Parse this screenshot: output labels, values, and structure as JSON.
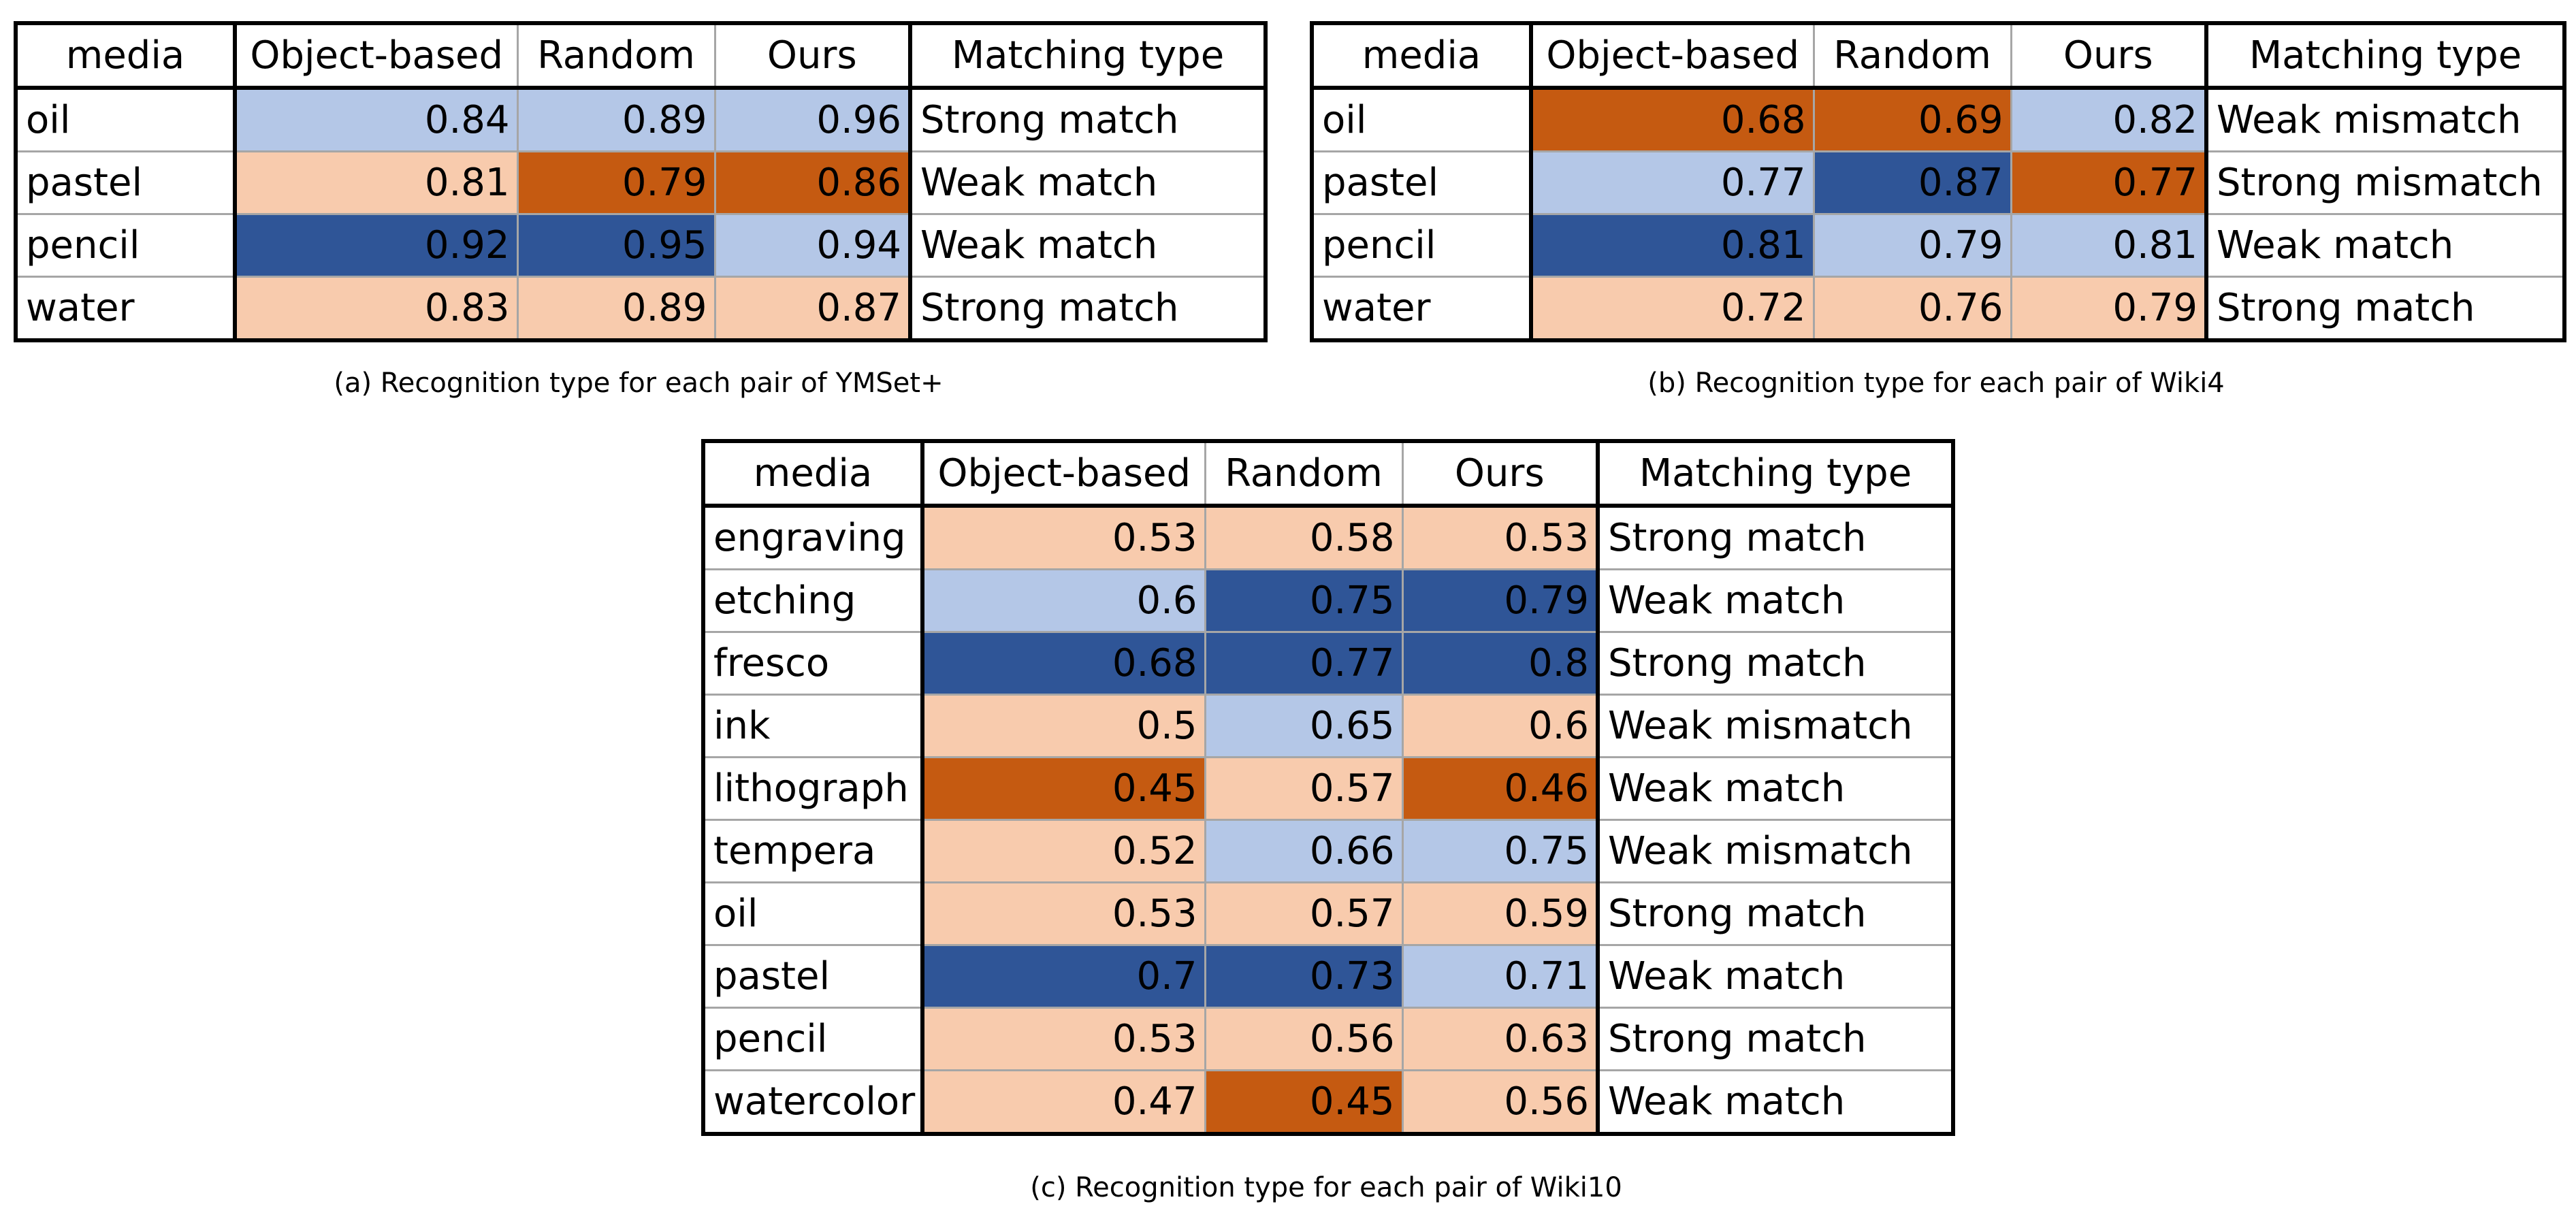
{
  "colors": {
    "light_blue": "#b4c7e7",
    "dark_blue": "#2f5597",
    "light_orange": "#f8cbad",
    "dark_orange": "#c55a11"
  },
  "headers": [
    "media",
    "Object-based",
    "Random",
    "Ours",
    "Matching type"
  ],
  "tables": [
    {
      "caption": "(a) Recognition type for each pair of YMSet+",
      "rows": [
        {
          "media": "oil",
          "values": [
            "0.84",
            "0.89",
            "0.96"
          ],
          "shades": [
            "lb",
            "lb",
            "lb"
          ],
          "matching": "Strong match"
        },
        {
          "media": "pastel",
          "values": [
            "0.81",
            "0.79",
            "0.86"
          ],
          "shades": [
            "lo",
            "do",
            "do"
          ],
          "matching": "Weak match"
        },
        {
          "media": "pencil",
          "values": [
            "0.92",
            "0.95",
            "0.94"
          ],
          "shades": [
            "db",
            "db",
            "lb"
          ],
          "matching": "Weak match"
        },
        {
          "media": "water",
          "values": [
            "0.83",
            "0.89",
            "0.87"
          ],
          "shades": [
            "lo",
            "lo",
            "lo"
          ],
          "matching": "Strong match"
        }
      ]
    },
    {
      "caption": "(b) Recognition type for each pair of Wiki4",
      "rows": [
        {
          "media": "oil",
          "values": [
            "0.68",
            "0.69",
            "0.82"
          ],
          "shades": [
            "do",
            "do",
            "lb"
          ],
          "matching": "Weak mismatch"
        },
        {
          "media": "pastel",
          "values": [
            "0.77",
            "0.87",
            "0.77"
          ],
          "shades": [
            "lb",
            "db",
            "do"
          ],
          "matching": "Strong mismatch"
        },
        {
          "media": "pencil",
          "values": [
            "0.81",
            "0.79",
            "0.81"
          ],
          "shades": [
            "db",
            "lb",
            "lb"
          ],
          "matching": "Weak match"
        },
        {
          "media": "water",
          "values": [
            "0.72",
            "0.76",
            "0.79"
          ],
          "shades": [
            "lo",
            "lo",
            "lo"
          ],
          "matching": "Strong match"
        }
      ]
    },
    {
      "caption": "(c) Recognition type for each pair of Wiki10",
      "rows": [
        {
          "media": "engraving",
          "values": [
            "0.53",
            "0.58",
            "0.53"
          ],
          "shades": [
            "lo",
            "lo",
            "lo"
          ],
          "matching": "Strong match"
        },
        {
          "media": "etching",
          "values": [
            "0.6",
            "0.75",
            "0.79"
          ],
          "shades": [
            "lb",
            "db",
            "db"
          ],
          "matching": "Weak match"
        },
        {
          "media": "fresco",
          "values": [
            "0.68",
            "0.77",
            "0.8"
          ],
          "shades": [
            "db",
            "db",
            "db"
          ],
          "matching": "Strong match"
        },
        {
          "media": "ink",
          "values": [
            "0.5",
            "0.65",
            "0.6"
          ],
          "shades": [
            "lo",
            "lb",
            "lo"
          ],
          "matching": "Weak mismatch"
        },
        {
          "media": "lithograph",
          "values": [
            "0.45",
            "0.57",
            "0.46"
          ],
          "shades": [
            "do",
            "lo",
            "do"
          ],
          "matching": "Weak match"
        },
        {
          "media": "tempera",
          "values": [
            "0.52",
            "0.66",
            "0.75"
          ],
          "shades": [
            "lo",
            "lb",
            "lb"
          ],
          "matching": "Weak mismatch"
        },
        {
          "media": "oil",
          "values": [
            "0.53",
            "0.57",
            "0.59"
          ],
          "shades": [
            "lo",
            "lo",
            "lo"
          ],
          "matching": "Strong match"
        },
        {
          "media": "pastel",
          "values": [
            "0.7",
            "0.73",
            "0.71"
          ],
          "shades": [
            "db",
            "db",
            "lb"
          ],
          "matching": "Weak match"
        },
        {
          "media": "pencil",
          "values": [
            "0.53",
            "0.56",
            "0.63"
          ],
          "shades": [
            "lo",
            "lo",
            "lo"
          ],
          "matching": "Strong match"
        },
        {
          "media": "watercolor",
          "values": [
            "0.47",
            "0.45",
            "0.56"
          ],
          "shades": [
            "lo",
            "do",
            "lo"
          ],
          "matching": "Weak match"
        }
      ]
    }
  ]
}
